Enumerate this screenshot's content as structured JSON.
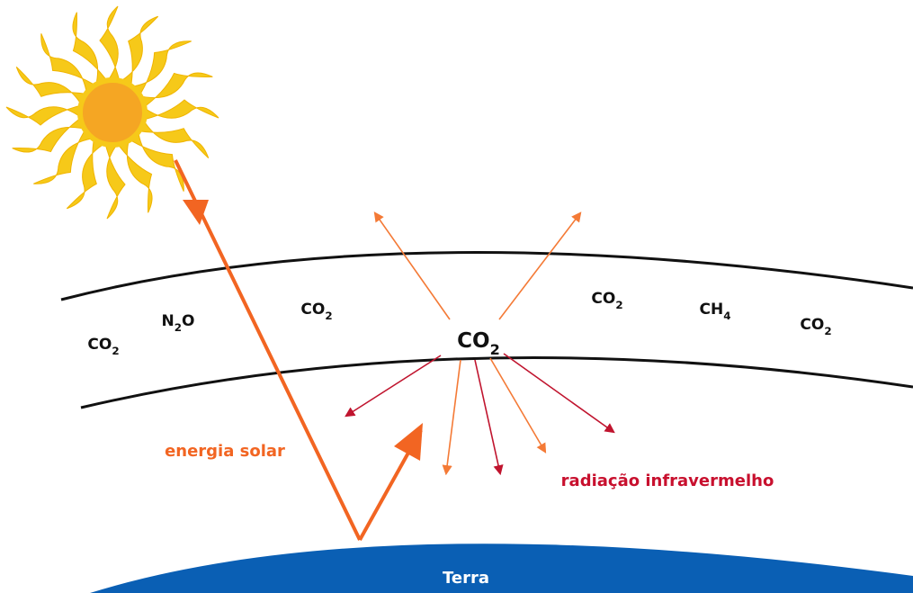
{
  "molecules": [
    "CO2",
    "N2O",
    "CO2",
    "CO2",
    "CO2",
    "CH4",
    "CO2"
  ],
  "labels": {
    "solar": "energia solar",
    "infrared": "radiação infravermelho",
    "earth": "Terra"
  }
}
